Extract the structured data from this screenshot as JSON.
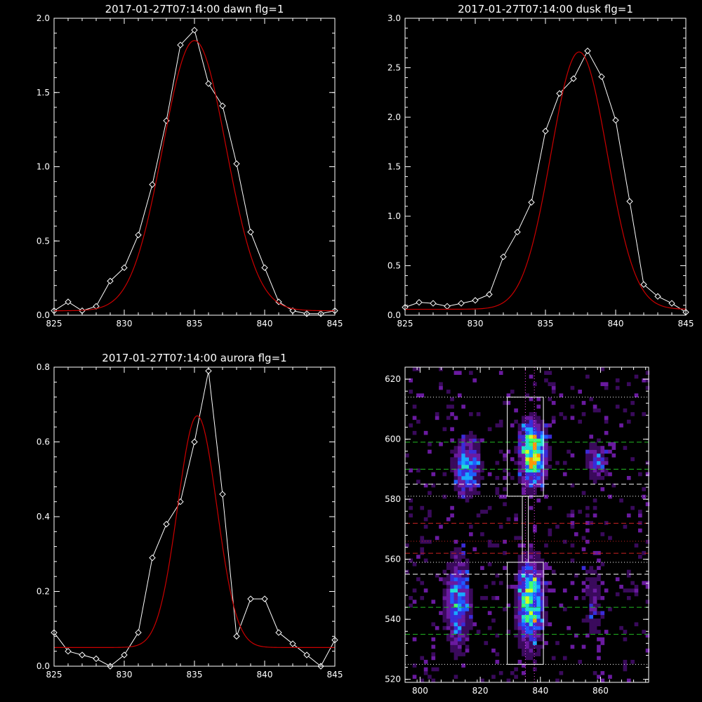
{
  "chart_data": [
    {
      "type": "line",
      "title": "2017-01-27T07:14:00 dawn flg=1",
      "xlim": [
        825,
        845
      ],
      "ylim": [
        0,
        2.0
      ],
      "xticks": [
        825,
        830,
        835,
        840,
        845
      ],
      "yticks": [
        0.0,
        0.5,
        1.0,
        1.5,
        2.0
      ],
      "xtick_labels": [
        "825",
        "830",
        "835",
        "840",
        "845"
      ],
      "ytick_labels": [
        "0.0",
        "0.5",
        "1.0",
        "1.5",
        "2.0"
      ],
      "series": [
        {
          "x": [
            825,
            826,
            827,
            828,
            829,
            830,
            831,
            832,
            833,
            834,
            835,
            836,
            837,
            838,
            839,
            840,
            841,
            842,
            843,
            844,
            845
          ],
          "y": [
            0.03,
            0.09,
            0.03,
            0.06,
            0.23,
            0.32,
            0.54,
            0.88,
            1.31,
            1.82,
            1.92,
            1.56,
            1.41,
            1.02,
            0.56,
            0.32,
            0.09,
            0.03,
            0.01,
            0.01,
            0.03
          ],
          "color": "#ffffff",
          "marker": "diamond"
        },
        {
          "fit": "gaussian",
          "amplitude": 1.82,
          "center": 835.0,
          "sigma": 2.25,
          "offset": 0.03,
          "color": "#cc0000"
        }
      ]
    },
    {
      "type": "line",
      "title": "2017-01-27T07:14:00 dusk flg=1",
      "xlim": [
        825,
        845
      ],
      "ylim": [
        0,
        3.0
      ],
      "xticks": [
        825,
        830,
        835,
        840,
        845
      ],
      "yticks": [
        0.0,
        0.5,
        1.0,
        1.5,
        2.0,
        2.5,
        3.0
      ],
      "xtick_labels": [
        "825",
        "830",
        "835",
        "840",
        "845"
      ],
      "ytick_labels": [
        "0.0",
        "0.5",
        "1.0",
        "1.5",
        "2.0",
        "2.5",
        "3.0"
      ],
      "series": [
        {
          "x": [
            825,
            826,
            827,
            828,
            829,
            830,
            831,
            832,
            833,
            834,
            835,
            836,
            837,
            838,
            839,
            840,
            841,
            842,
            843,
            844,
            845
          ],
          "y": [
            0.08,
            0.13,
            0.12,
            0.09,
            0.12,
            0.15,
            0.21,
            0.59,
            0.84,
            1.14,
            1.86,
            2.24,
            2.39,
            2.67,
            2.41,
            1.97,
            1.15,
            0.31,
            0.19,
            0.12,
            0.03
          ],
          "color": "#ffffff",
          "marker": "diamond"
        },
        {
          "fit": "gaussian",
          "amplitude": 2.6,
          "center": 837.4,
          "sigma": 2.0,
          "offset": 0.06,
          "color": "#cc0000"
        }
      ]
    },
    {
      "type": "line",
      "title": "2017-01-27T07:14:00 aurora flg=1",
      "xlim": [
        825,
        845
      ],
      "ylim": [
        0,
        0.8
      ],
      "xticks": [
        825,
        830,
        835,
        840,
        845
      ],
      "yticks": [
        0.0,
        0.2,
        0.4,
        0.6,
        0.8
      ],
      "xtick_labels": [
        "825",
        "830",
        "835",
        "840",
        "845"
      ],
      "ytick_labels": [
        "0.0",
        "0.2",
        "0.4",
        "0.6",
        "0.8"
      ],
      "series": [
        {
          "x": [
            825,
            826,
            827,
            828,
            829,
            830,
            831,
            832,
            833,
            834,
            835,
            836,
            837,
            838,
            839,
            840,
            841,
            842,
            843,
            844,
            845
          ],
          "y": [
            0.09,
            0.04,
            0.03,
            0.02,
            0.0,
            0.03,
            0.09,
            0.29,
            0.38,
            0.44,
            0.6,
            0.79,
            0.46,
            0.08,
            0.18,
            0.18,
            0.09,
            0.06,
            0.03,
            0.0,
            0.07
          ],
          "color": "#ffffff",
          "marker": "diamond"
        },
        {
          "fit": "gaussian",
          "amplitude": 0.62,
          "center": 835.2,
          "sigma": 1.4,
          "offset": 0.05,
          "color": "#cc0000"
        }
      ]
    },
    {
      "type": "heatmap",
      "title": "",
      "xlim": [
        795,
        876
      ],
      "ylim": [
        519,
        624
      ],
      "xticks": [
        800,
        820,
        840,
        860
      ],
      "yticks": [
        520,
        540,
        560,
        580,
        600,
        620
      ],
      "xtick_labels": [
        "800",
        "820",
        "840",
        "860"
      ],
      "ytick_labels": [
        "520",
        "540",
        "560",
        "580",
        "600",
        "620"
      ],
      "hot_spots": [
        {
          "x": 837,
          "y": 595,
          "sx": 3,
          "sy": 7,
          "amp": 1.0
        },
        {
          "x": 836,
          "y": 545,
          "sx": 3,
          "sy": 10,
          "amp": 0.8
        },
        {
          "x": 815,
          "y": 590,
          "sx": 3,
          "sy": 7,
          "amp": 0.55
        },
        {
          "x": 812,
          "y": 545,
          "sx": 3,
          "sy": 11,
          "amp": 0.5
        },
        {
          "x": 858,
          "y": 592,
          "sx": 3,
          "sy": 5,
          "amp": 0.35
        },
        {
          "x": 857,
          "y": 545,
          "sx": 3,
          "sy": 11,
          "amp": 0.22
        }
      ],
      "boxes": [
        {
          "x0": 829,
          "x1": 841,
          "y0": 581,
          "y1": 614
        },
        {
          "x0": 829,
          "x1": 841,
          "y0": 525,
          "y1": 559
        },
        {
          "x0": 834,
          "x1": 836,
          "y0": 559,
          "y1": 581
        }
      ],
      "hlines": [
        {
          "y": 614,
          "color": "#ffffff",
          "style": "dotted"
        },
        {
          "y": 599,
          "color": "#22bb22",
          "style": "dashed"
        },
        {
          "y": 590,
          "color": "#22bb22",
          "style": "dashed"
        },
        {
          "y": 585,
          "color": "#ffffff",
          "style": "dashed"
        },
        {
          "y": 581,
          "color": "#ffffff",
          "style": "dotted"
        },
        {
          "y": 572,
          "color": "#cc2222",
          "style": "dashed"
        },
        {
          "y": 566,
          "color": "#cc2222",
          "style": "dotted"
        },
        {
          "y": 562,
          "color": "#cc2222",
          "style": "dashed"
        },
        {
          "y": 559,
          "color": "#ffffff",
          "style": "dotted"
        },
        {
          "y": 555,
          "color": "#ffffff",
          "style": "dashed"
        },
        {
          "y": 544,
          "color": "#22bb22",
          "style": "dashed"
        },
        {
          "y": 535,
          "color": "#22bb22",
          "style": "dashed"
        },
        {
          "y": 525,
          "color": "#ffffff",
          "style": "dotted"
        }
      ],
      "vlines": [
        {
          "x": 835,
          "color": "#ff44ff",
          "style": "dotted"
        },
        {
          "x": 838,
          "color": "#ff44ff",
          "style": "dotted"
        }
      ]
    }
  ]
}
